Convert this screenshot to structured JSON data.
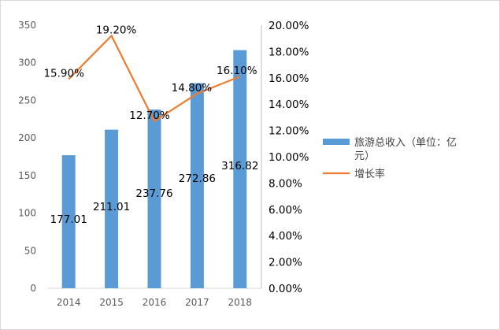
{
  "chart_data": {
    "type": "bar+line",
    "categories": [
      "2014",
      "2015",
      "2016",
      "2017",
      "2018"
    ],
    "series": [
      {
        "name": "旅游总收入（单位：亿元）",
        "type": "bar",
        "axis": "left",
        "color": "#5b9bd5",
        "values": [
          177.01,
          211.01,
          237.76,
          272.86,
          316.82
        ],
        "labels": [
          "177.01",
          "211.01",
          "237.76",
          "272.86",
          "316.82"
        ]
      },
      {
        "name": "增长率",
        "type": "line",
        "axis": "right",
        "color": "#ed7d31",
        "values": [
          15.9,
          19.2,
          12.7,
          14.8,
          16.1
        ],
        "labels": [
          "15.90%",
          "19.20%",
          "12.70%",
          "14.80%",
          "16.10%"
        ]
      }
    ],
    "y_left": {
      "ylim": [
        0,
        350
      ],
      "ticks": [
        "0",
        "50",
        "100",
        "150",
        "200",
        "250",
        "300",
        "350"
      ]
    },
    "y_right": {
      "ylim": [
        0,
        20
      ],
      "ticks": [
        "0.00%",
        "2.00%",
        "4.00%",
        "6.00%",
        "8.00%",
        "10.00%",
        "12.00%",
        "14.00%",
        "16.00%",
        "18.00%",
        "20.00%"
      ]
    },
    "legend": {
      "position": "right",
      "entries": [
        {
          "label_line1": "旅游总收入（单位：亿",
          "label_line2": "元）"
        },
        {
          "label_line1": "增长率"
        }
      ]
    },
    "grid": false
  }
}
